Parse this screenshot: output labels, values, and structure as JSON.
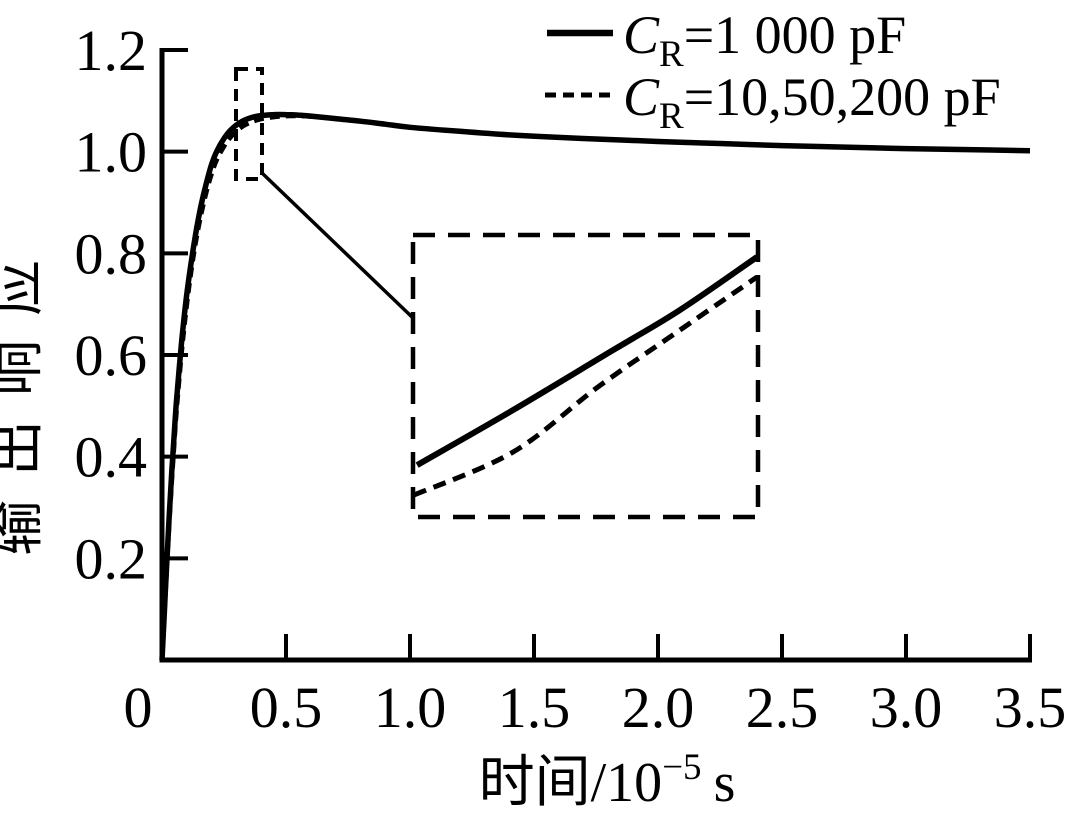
{
  "figure": {
    "background_color": "#ffffff",
    "ink_color": "#000000"
  },
  "chart_data": {
    "type": "line",
    "title": "",
    "xlabel_prefix": "时间/10",
    "xlabel_exponent": "−5",
    "xlabel_unit": "s",
    "ylabel": "输出响应",
    "xlim": [
      0,
      3.5
    ],
    "ylim": [
      0,
      1.2
    ],
    "grid": false,
    "legend_position": "top-right",
    "origin_label": "0",
    "xticks": {
      "values": [
        0.5,
        1.0,
        1.5,
        2.0,
        2.5,
        3.0,
        3.5
      ],
      "labels": [
        "0.5",
        "1.0",
        "1.5",
        "2.0",
        "2.5",
        "3.0",
        "3.5"
      ]
    },
    "yticks": {
      "values": [
        0.2,
        0.4,
        0.6,
        0.8,
        1.0,
        1.2
      ],
      "labels": [
        "0.2",
        "0.4",
        "0.6",
        "0.8",
        "1.0",
        "1.2"
      ]
    },
    "series": [
      {
        "name": "C_R=1 000 pF",
        "style": "solid",
        "x": [
          0,
          0.01,
          0.02,
          0.03,
          0.04,
          0.05,
          0.06,
          0.08,
          0.1,
          0.12,
          0.14,
          0.16,
          0.18,
          0.2,
          0.22,
          0.25,
          0.28,
          0.32,
          0.36,
          0.4,
          0.45,
          0.5,
          0.55,
          0.6,
          0.7,
          0.8,
          0.9,
          1,
          1.2,
          1.4,
          1.6,
          1.8,
          2,
          2.25,
          2.5,
          2.75,
          3,
          3.25,
          3.5
        ],
        "y": [
          0,
          0.1,
          0.2,
          0.29,
          0.375,
          0.45,
          0.52,
          0.63,
          0.72,
          0.79,
          0.85,
          0.9,
          0.94,
          0.975,
          1,
          1.026,
          1.044,
          1.059,
          1.067,
          1.071,
          1.073,
          1.073,
          1.072,
          1.07,
          1.065,
          1.06,
          1.054,
          1.048,
          1.04,
          1.033,
          1.028,
          1.024,
          1.02,
          1.016,
          1.012,
          1.009,
          1.006,
          1.004,
          1.002
        ]
      },
      {
        "name": "C_R=10,50,200 pF",
        "style": "dashed",
        "x": [
          0,
          0.01,
          0.02,
          0.03,
          0.04,
          0.05,
          0.06,
          0.08,
          0.1,
          0.12,
          0.14,
          0.16,
          0.18,
          0.2,
          0.22,
          0.25,
          0.28,
          0.32,
          0.36,
          0.4,
          0.45,
          0.5,
          0.55,
          0.6,
          0.7,
          0.8,
          0.9,
          1,
          1.2,
          1.4,
          1.6,
          1.8,
          2,
          2.25,
          2.5,
          2.75,
          3,
          3.25,
          3.5
        ],
        "y": [
          0,
          0.09,
          0.185,
          0.272,
          0.353,
          0.428,
          0.497,
          0.607,
          0.698,
          0.772,
          0.832,
          0.881,
          0.922,
          0.956,
          0.983,
          1.01,
          1.03,
          1.048,
          1.058,
          1.064,
          1.068,
          1.07,
          1.07,
          1.069,
          1.065,
          1.06,
          1.054,
          1.048,
          1.04,
          1.033,
          1.028,
          1.024,
          1.02,
          1.016,
          1.012,
          1.009,
          1.006,
          1.004,
          1.002
        ]
      }
    ],
    "inset": {
      "description": "zoom of boxed rise region",
      "source_region_t": [
        0.3,
        0.4
      ],
      "source_region_v": [
        0.95,
        1.16
      ],
      "series": [
        {
          "style": "solid",
          "points_frac": [
            [
              0.012,
              0.184
            ],
            [
              0.29,
              0.379
            ],
            [
              0.58,
              0.592
            ],
            [
              0.774,
              0.734
            ],
            [
              0.997,
              0.922
            ]
          ]
        },
        {
          "style": "dashed",
          "points_frac": [
            [
              0.003,
              0.078
            ],
            [
              0.29,
              0.23
            ],
            [
              0.536,
              0.461
            ],
            [
              0.774,
              0.663
            ],
            [
              0.997,
              0.851
            ]
          ]
        }
      ]
    }
  },
  "legend": {
    "symbol_letter": "C",
    "symbol_subscript": "R",
    "entries": [
      {
        "suffix": "=1 000 pF",
        "line_style": "solid"
      },
      {
        "suffix": "=10,50,200 pF",
        "line_style": "dashed"
      }
    ]
  }
}
